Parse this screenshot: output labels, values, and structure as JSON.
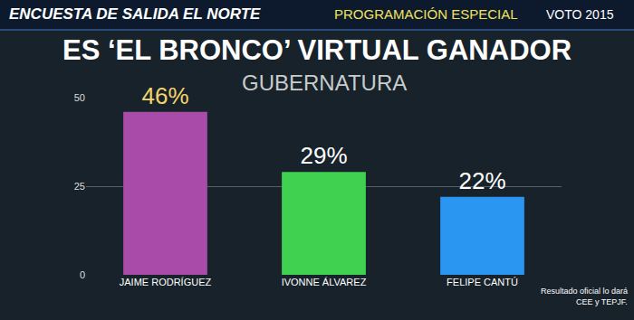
{
  "chart_data": {
    "type": "bar",
    "title": "ES ‘EL BRONCO’ VIRTUAL GANADOR",
    "subtitle": "GUBERNATURA",
    "categories": [
      "JAIME RODRÍGUEZ",
      "IVONNE ÁLVAREZ",
      "FELIPE CANTÚ"
    ],
    "values": [
      46,
      29,
      22
    ],
    "value_labels": [
      "46%",
      "29%",
      "22%"
    ],
    "colors": [
      "#a94ca9",
      "#3fd14f",
      "#2b95f2"
    ],
    "ylim": [
      0,
      50
    ],
    "yticks": [
      0,
      25,
      50
    ],
    "grid": true,
    "data_labels": true,
    "annotations": [
      "ENCUESTA DE SALIDA EL NORTE",
      "PROGRAMACIÓN ESPECIAL",
      "VOTO 2015",
      "Resultado oficial lo dará",
      "CEE y TEPJF."
    ]
  }
}
